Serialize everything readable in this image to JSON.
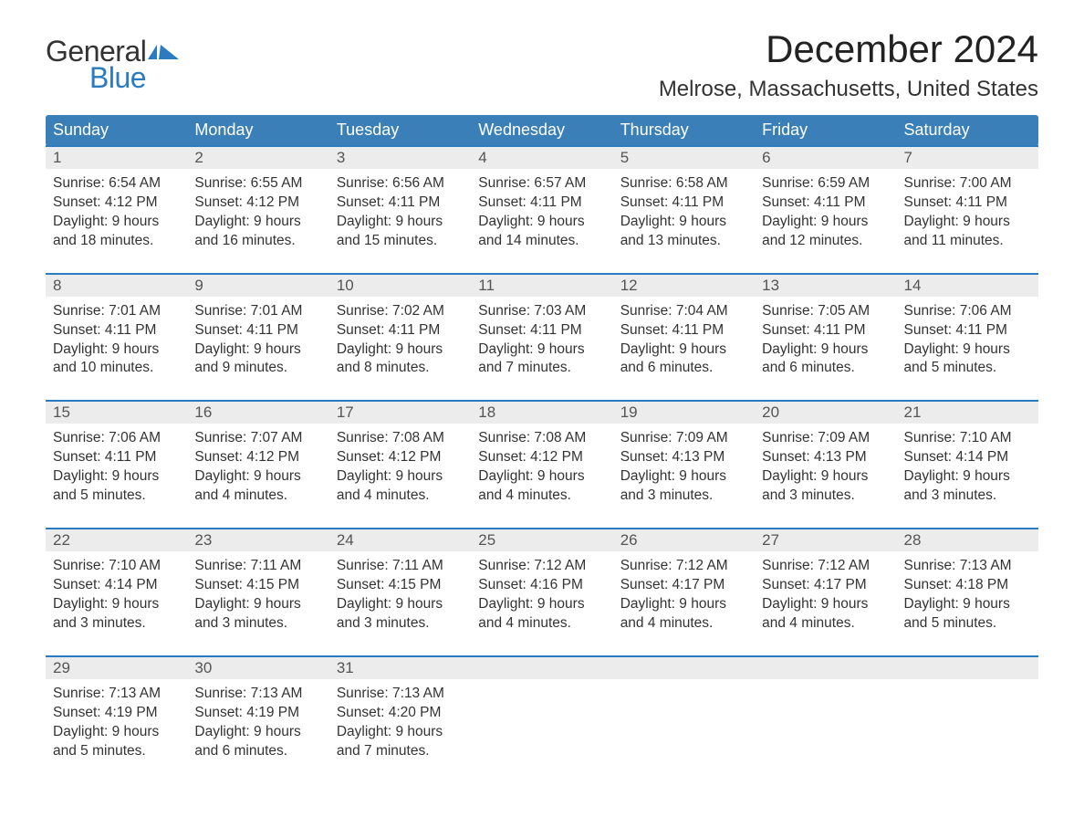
{
  "logo": {
    "text_general": "General",
    "text_blue": "Blue",
    "flag_color": "#2a7bbf"
  },
  "title": "December 2024",
  "location": "Melrose, Massachusetts, United States",
  "colors": {
    "header_bg": "#3a7fb8",
    "header_text": "#ffffff",
    "daynum_bg": "#ececec",
    "daynum_text": "#555555",
    "rule": "#2a7bbf",
    "body_text": "#333333",
    "page_bg": "#ffffff"
  },
  "day_headers": [
    "Sunday",
    "Monday",
    "Tuesday",
    "Wednesday",
    "Thursday",
    "Friday",
    "Saturday"
  ],
  "weeks": [
    [
      {
        "num": "1",
        "sunrise": "Sunrise: 6:54 AM",
        "sunset": "Sunset: 4:12 PM",
        "d1": "Daylight: 9 hours",
        "d2": "and 18 minutes."
      },
      {
        "num": "2",
        "sunrise": "Sunrise: 6:55 AM",
        "sunset": "Sunset: 4:12 PM",
        "d1": "Daylight: 9 hours",
        "d2": "and 16 minutes."
      },
      {
        "num": "3",
        "sunrise": "Sunrise: 6:56 AM",
        "sunset": "Sunset: 4:11 PM",
        "d1": "Daylight: 9 hours",
        "d2": "and 15 minutes."
      },
      {
        "num": "4",
        "sunrise": "Sunrise: 6:57 AM",
        "sunset": "Sunset: 4:11 PM",
        "d1": "Daylight: 9 hours",
        "d2": "and 14 minutes."
      },
      {
        "num": "5",
        "sunrise": "Sunrise: 6:58 AM",
        "sunset": "Sunset: 4:11 PM",
        "d1": "Daylight: 9 hours",
        "d2": "and 13 minutes."
      },
      {
        "num": "6",
        "sunrise": "Sunrise: 6:59 AM",
        "sunset": "Sunset: 4:11 PM",
        "d1": "Daylight: 9 hours",
        "d2": "and 12 minutes."
      },
      {
        "num": "7",
        "sunrise": "Sunrise: 7:00 AM",
        "sunset": "Sunset: 4:11 PM",
        "d1": "Daylight: 9 hours",
        "d2": "and 11 minutes."
      }
    ],
    [
      {
        "num": "8",
        "sunrise": "Sunrise: 7:01 AM",
        "sunset": "Sunset: 4:11 PM",
        "d1": "Daylight: 9 hours",
        "d2": "and 10 minutes."
      },
      {
        "num": "9",
        "sunrise": "Sunrise: 7:01 AM",
        "sunset": "Sunset: 4:11 PM",
        "d1": "Daylight: 9 hours",
        "d2": "and 9 minutes."
      },
      {
        "num": "10",
        "sunrise": "Sunrise: 7:02 AM",
        "sunset": "Sunset: 4:11 PM",
        "d1": "Daylight: 9 hours",
        "d2": "and 8 minutes."
      },
      {
        "num": "11",
        "sunrise": "Sunrise: 7:03 AM",
        "sunset": "Sunset: 4:11 PM",
        "d1": "Daylight: 9 hours",
        "d2": "and 7 minutes."
      },
      {
        "num": "12",
        "sunrise": "Sunrise: 7:04 AM",
        "sunset": "Sunset: 4:11 PM",
        "d1": "Daylight: 9 hours",
        "d2": "and 6 minutes."
      },
      {
        "num": "13",
        "sunrise": "Sunrise: 7:05 AM",
        "sunset": "Sunset: 4:11 PM",
        "d1": "Daylight: 9 hours",
        "d2": "and 6 minutes."
      },
      {
        "num": "14",
        "sunrise": "Sunrise: 7:06 AM",
        "sunset": "Sunset: 4:11 PM",
        "d1": "Daylight: 9 hours",
        "d2": "and 5 minutes."
      }
    ],
    [
      {
        "num": "15",
        "sunrise": "Sunrise: 7:06 AM",
        "sunset": "Sunset: 4:11 PM",
        "d1": "Daylight: 9 hours",
        "d2": "and 5 minutes."
      },
      {
        "num": "16",
        "sunrise": "Sunrise: 7:07 AM",
        "sunset": "Sunset: 4:12 PM",
        "d1": "Daylight: 9 hours",
        "d2": "and 4 minutes."
      },
      {
        "num": "17",
        "sunrise": "Sunrise: 7:08 AM",
        "sunset": "Sunset: 4:12 PM",
        "d1": "Daylight: 9 hours",
        "d2": "and 4 minutes."
      },
      {
        "num": "18",
        "sunrise": "Sunrise: 7:08 AM",
        "sunset": "Sunset: 4:12 PM",
        "d1": "Daylight: 9 hours",
        "d2": "and 4 minutes."
      },
      {
        "num": "19",
        "sunrise": "Sunrise: 7:09 AM",
        "sunset": "Sunset: 4:13 PM",
        "d1": "Daylight: 9 hours",
        "d2": "and 3 minutes."
      },
      {
        "num": "20",
        "sunrise": "Sunrise: 7:09 AM",
        "sunset": "Sunset: 4:13 PM",
        "d1": "Daylight: 9 hours",
        "d2": "and 3 minutes."
      },
      {
        "num": "21",
        "sunrise": "Sunrise: 7:10 AM",
        "sunset": "Sunset: 4:14 PM",
        "d1": "Daylight: 9 hours",
        "d2": "and 3 minutes."
      }
    ],
    [
      {
        "num": "22",
        "sunrise": "Sunrise: 7:10 AM",
        "sunset": "Sunset: 4:14 PM",
        "d1": "Daylight: 9 hours",
        "d2": "and 3 minutes."
      },
      {
        "num": "23",
        "sunrise": "Sunrise: 7:11 AM",
        "sunset": "Sunset: 4:15 PM",
        "d1": "Daylight: 9 hours",
        "d2": "and 3 minutes."
      },
      {
        "num": "24",
        "sunrise": "Sunrise: 7:11 AM",
        "sunset": "Sunset: 4:15 PM",
        "d1": "Daylight: 9 hours",
        "d2": "and 3 minutes."
      },
      {
        "num": "25",
        "sunrise": "Sunrise: 7:12 AM",
        "sunset": "Sunset: 4:16 PM",
        "d1": "Daylight: 9 hours",
        "d2": "and 4 minutes."
      },
      {
        "num": "26",
        "sunrise": "Sunrise: 7:12 AM",
        "sunset": "Sunset: 4:17 PM",
        "d1": "Daylight: 9 hours",
        "d2": "and 4 minutes."
      },
      {
        "num": "27",
        "sunrise": "Sunrise: 7:12 AM",
        "sunset": "Sunset: 4:17 PM",
        "d1": "Daylight: 9 hours",
        "d2": "and 4 minutes."
      },
      {
        "num": "28",
        "sunrise": "Sunrise: 7:13 AM",
        "sunset": "Sunset: 4:18 PM",
        "d1": "Daylight: 9 hours",
        "d2": "and 5 minutes."
      }
    ],
    [
      {
        "num": "29",
        "sunrise": "Sunrise: 7:13 AM",
        "sunset": "Sunset: 4:19 PM",
        "d1": "Daylight: 9 hours",
        "d2": "and 5 minutes."
      },
      {
        "num": "30",
        "sunrise": "Sunrise: 7:13 AM",
        "sunset": "Sunset: 4:19 PM",
        "d1": "Daylight: 9 hours",
        "d2": "and 6 minutes."
      },
      {
        "num": "31",
        "sunrise": "Sunrise: 7:13 AM",
        "sunset": "Sunset: 4:20 PM",
        "d1": "Daylight: 9 hours",
        "d2": "and 7 minutes."
      },
      null,
      null,
      null,
      null
    ]
  ]
}
